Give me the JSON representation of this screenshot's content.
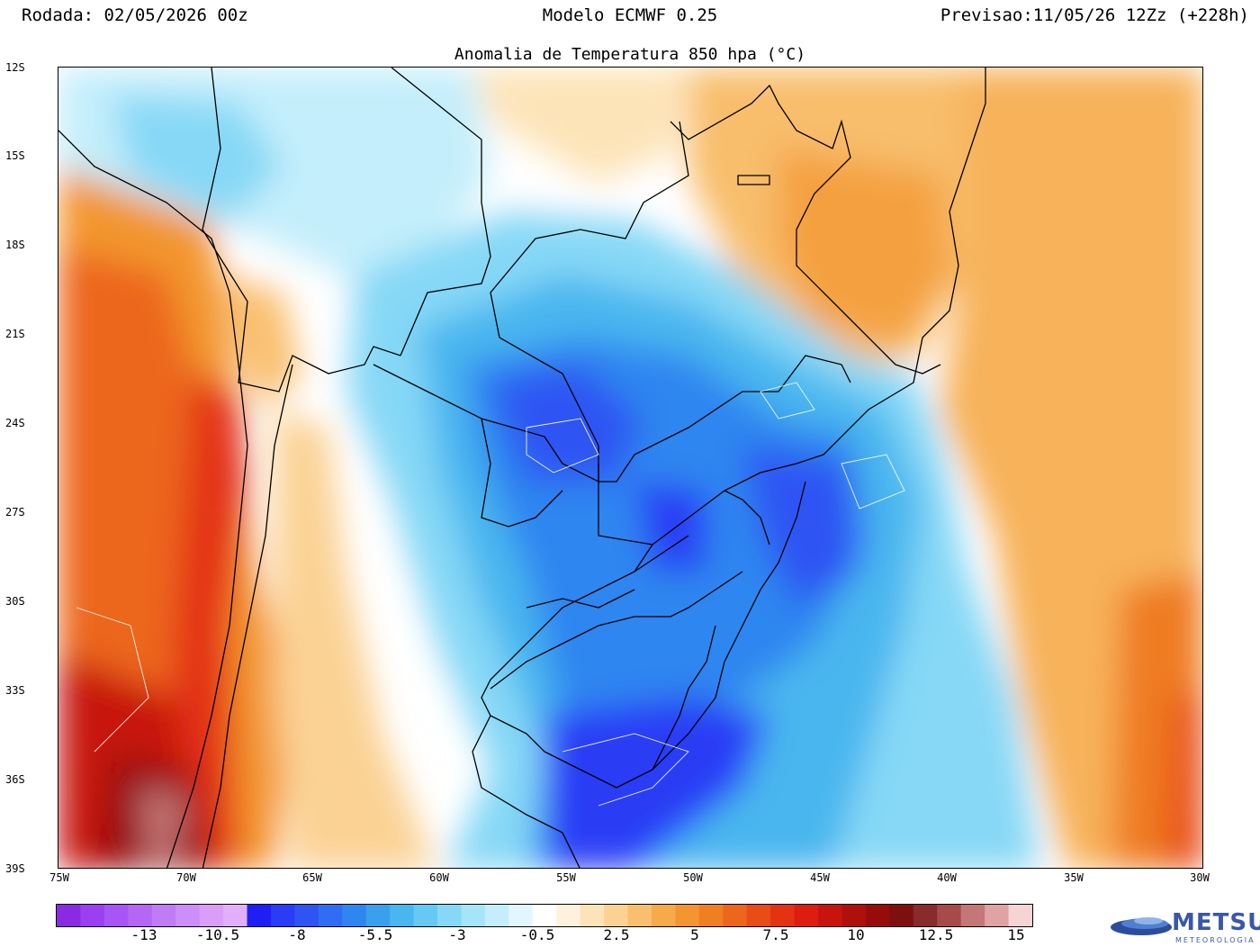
{
  "header": {
    "run": "Rodada: 02/05/2026 00z",
    "model": "Modelo ECMWF 0.25",
    "forecast": "Previsao:11/05/26 12Zz (+228h)"
  },
  "map": {
    "title": "Anomalia de Temperatura 850 hpa (°C)",
    "lat_labels": [
      "12S",
      "15S",
      "18S",
      "21S",
      "24S",
      "27S",
      "30S",
      "33S",
      "36S",
      "39S"
    ],
    "lon_labels": [
      "75W",
      "70W",
      "65W",
      "60W",
      "55W",
      "50W",
      "45W",
      "40W",
      "35W",
      "30W"
    ],
    "extent": {
      "lon_min": -75,
      "lon_max": -30,
      "lat_min": -39,
      "lat_max": -12
    }
  },
  "colorbar": {
    "labels": [
      "-13",
      "-10.5",
      "-8",
      "-5.5",
      "-3",
      "-0.5",
      "2.5",
      "5",
      "7.5",
      "10",
      "12.5",
      "15"
    ],
    "colors": [
      "#8a2be2",
      "#9b3ff0",
      "#a855f7",
      "#b466f5",
      "#c07cf7",
      "#cc8ef8",
      "#d99efa",
      "#e2b0fb",
      "#1f1ff5",
      "#2a3cf5",
      "#2e55f3",
      "#2f6ef2",
      "#2f86f0",
      "#3aa0ee",
      "#49b6ef",
      "#66c9f3",
      "#86d8f6",
      "#a6e4f8",
      "#c4eefb",
      "#e2f7fd",
      "#ffffff",
      "#fff2dc",
      "#fde4b8",
      "#fbd294",
      "#f9bf6e",
      "#f6aa4a",
      "#f3962f",
      "#f07f22",
      "#ec661b",
      "#e84c17",
      "#e33313",
      "#dc1d10",
      "#c8140e",
      "#b0100c",
      "#960c0b",
      "#7e0f0f",
      "#8a2b2b",
      "#a64a4a",
      "#c47777",
      "#dfa3a3",
      "#f4d4d4"
    ]
  },
  "logo": {
    "name": "METSUL",
    "sub": "METEOROLOGIA"
  }
}
